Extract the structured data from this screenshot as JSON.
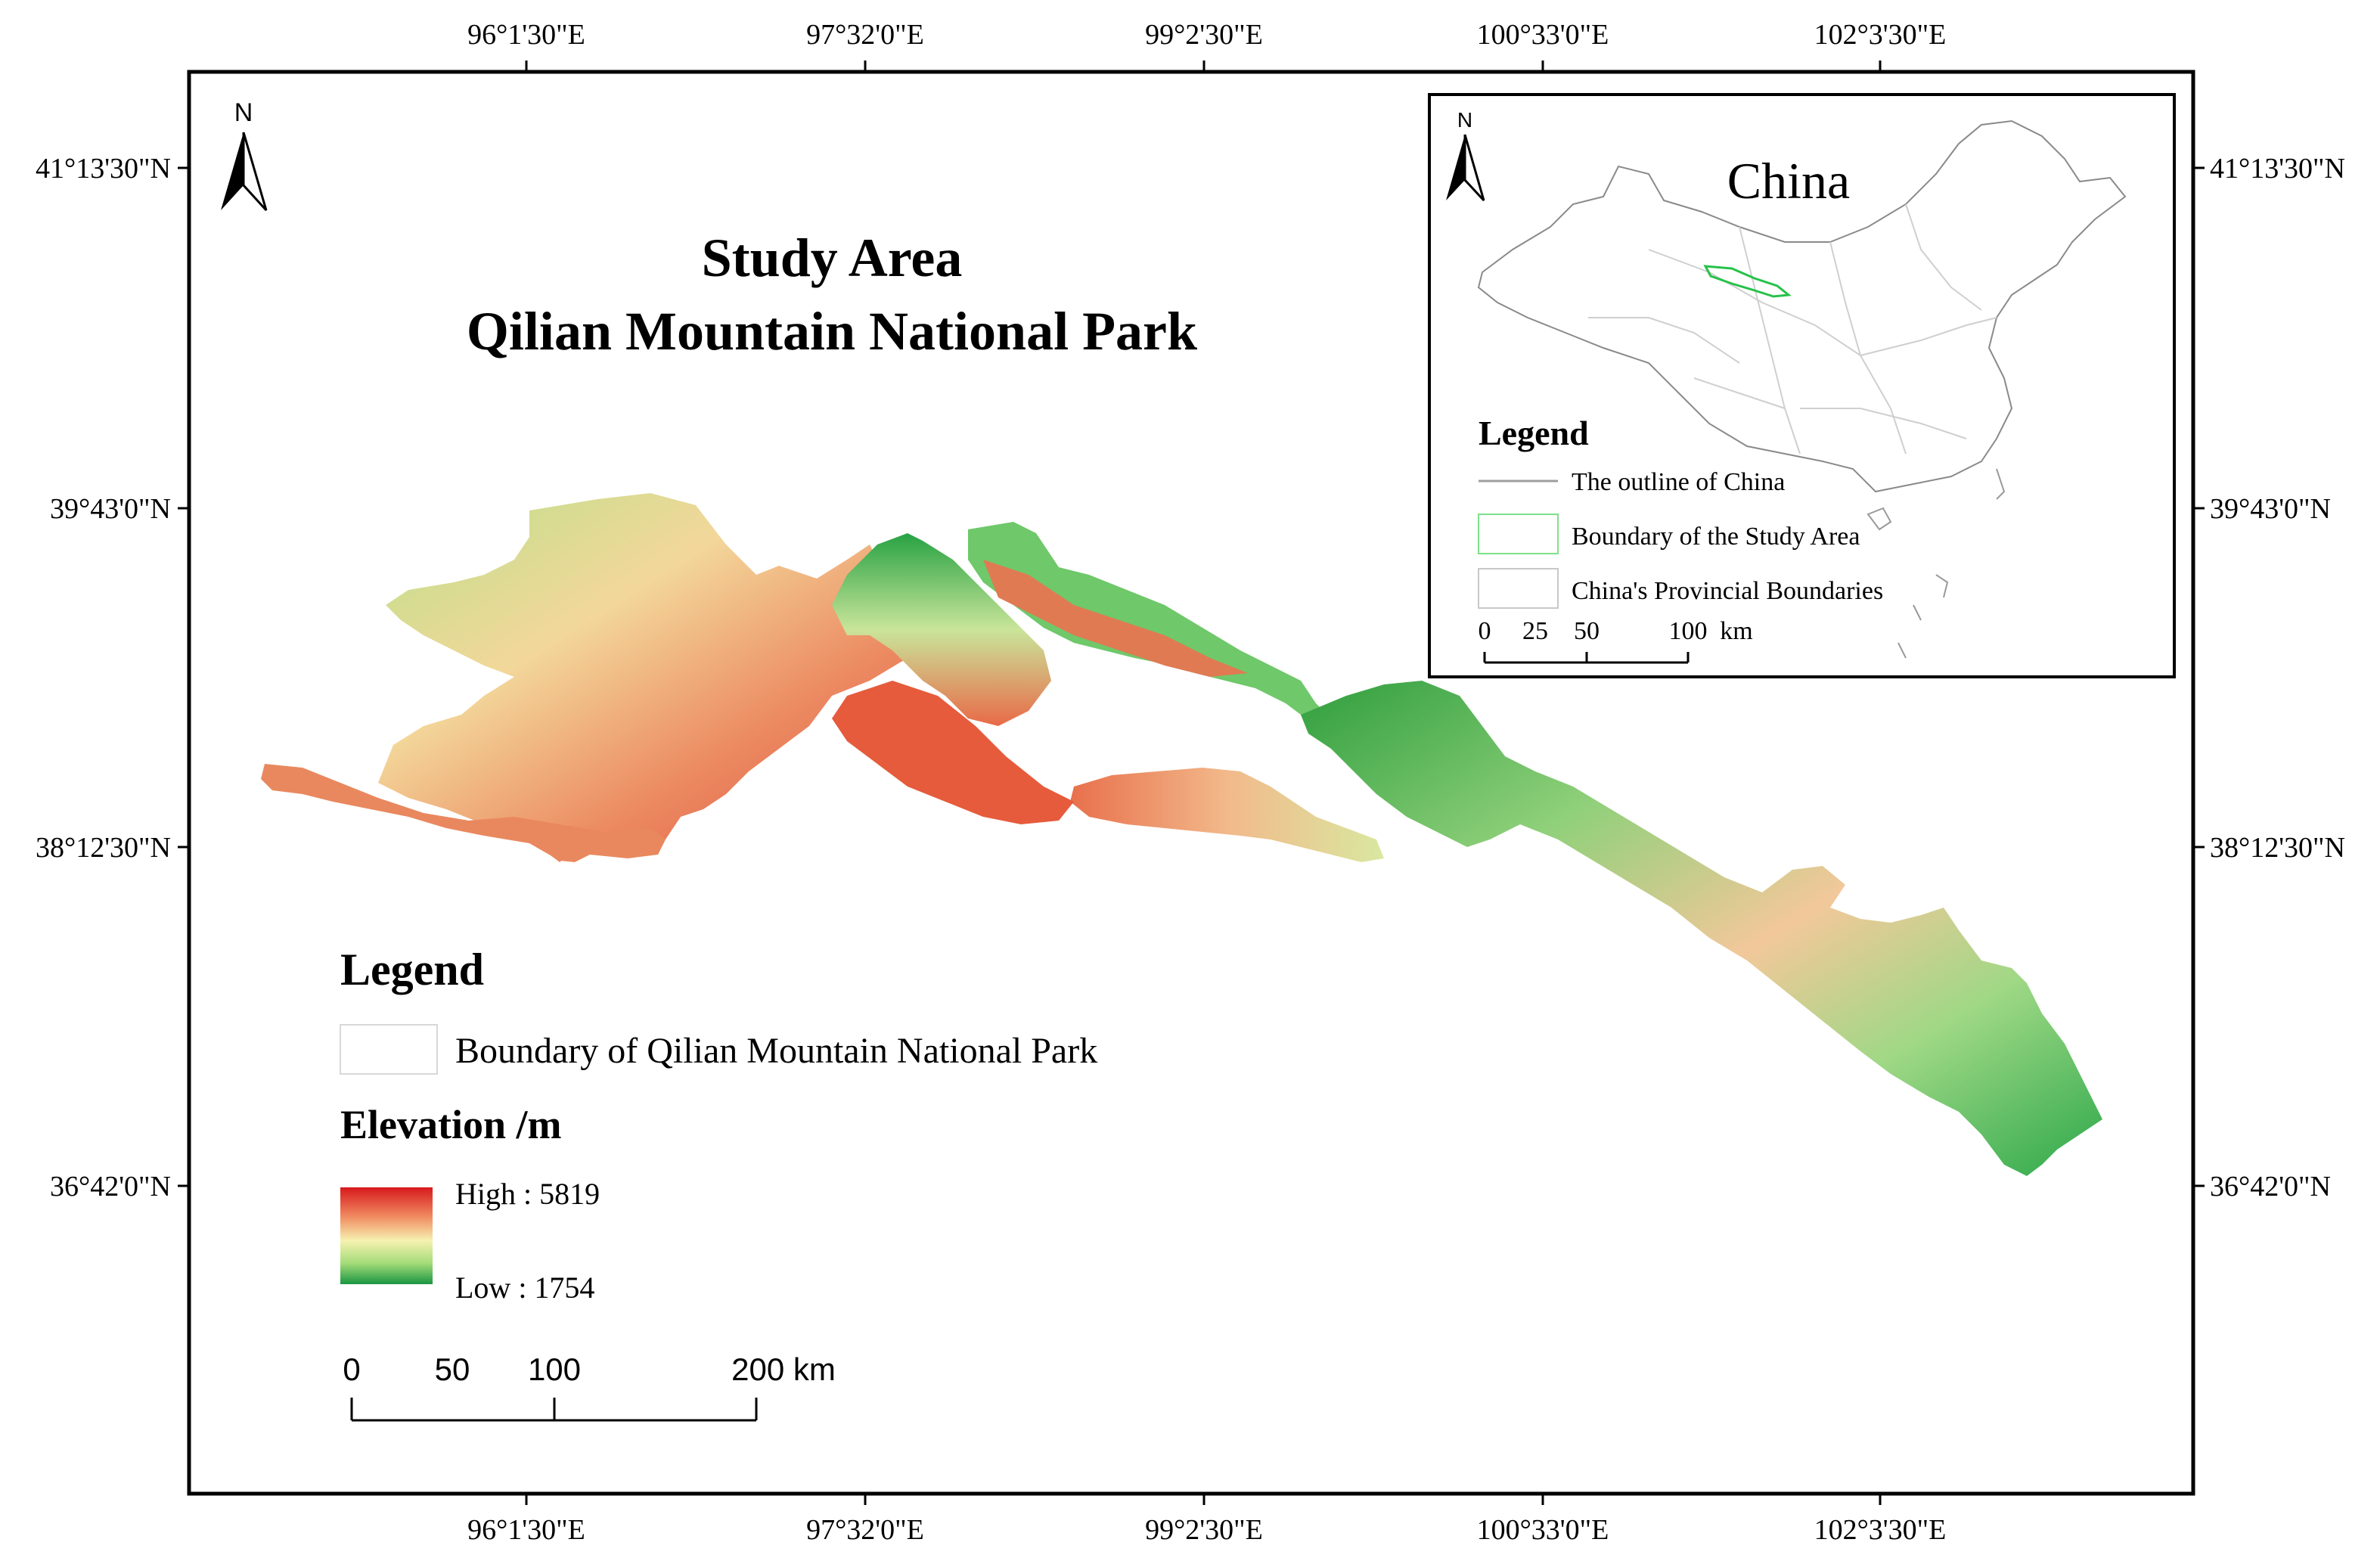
{
  "title": {
    "line1": "Study Area",
    "line2": "Qilian Mountain National Park"
  },
  "graticule": {
    "longitudes": [
      "96°1'30\"E",
      "97°32'0\"E",
      "99°2'30\"E",
      "100°33'0\"E",
      "102°3'30\"E"
    ],
    "latitudes": [
      "41°13'30\"N",
      "39°43'0\"N",
      "38°12'30\"N",
      "36°42'0\"N"
    ]
  },
  "north_arrow": {
    "label": "N"
  },
  "legend": {
    "title": "Legend",
    "boundary_label": "Boundary of Qilian Mountain National Park",
    "elevation_title": "Elevation /m",
    "high_label": "High : 5819",
    "low_label": "Low : 1754",
    "high_value": 5819,
    "low_value": 1754,
    "ramp_colors": [
      "#d7191c",
      "#f08a60",
      "#f6f2b0",
      "#a6dc7a",
      "#1a9641"
    ]
  },
  "scale_bar": {
    "ticks": [
      "0",
      "50",
      "100",
      "200 km"
    ]
  },
  "inset": {
    "title": "China",
    "north_label": "N",
    "legend_title": "Legend",
    "items": [
      {
        "label": "The outline of China",
        "color": "#9e9e9e"
      },
      {
        "label": "Boundary of the Study Area",
        "color": "#7ee08a"
      },
      {
        "label": "China's Provincial Boundaries",
        "color": "#c8c8c8"
      }
    ],
    "scale_ticks": [
      "0",
      "25",
      "50",
      "100",
      "km"
    ]
  },
  "colors": {
    "frame": "#000000",
    "study_area_green": "#2aa34a",
    "study_area_red": "#e0452e"
  }
}
